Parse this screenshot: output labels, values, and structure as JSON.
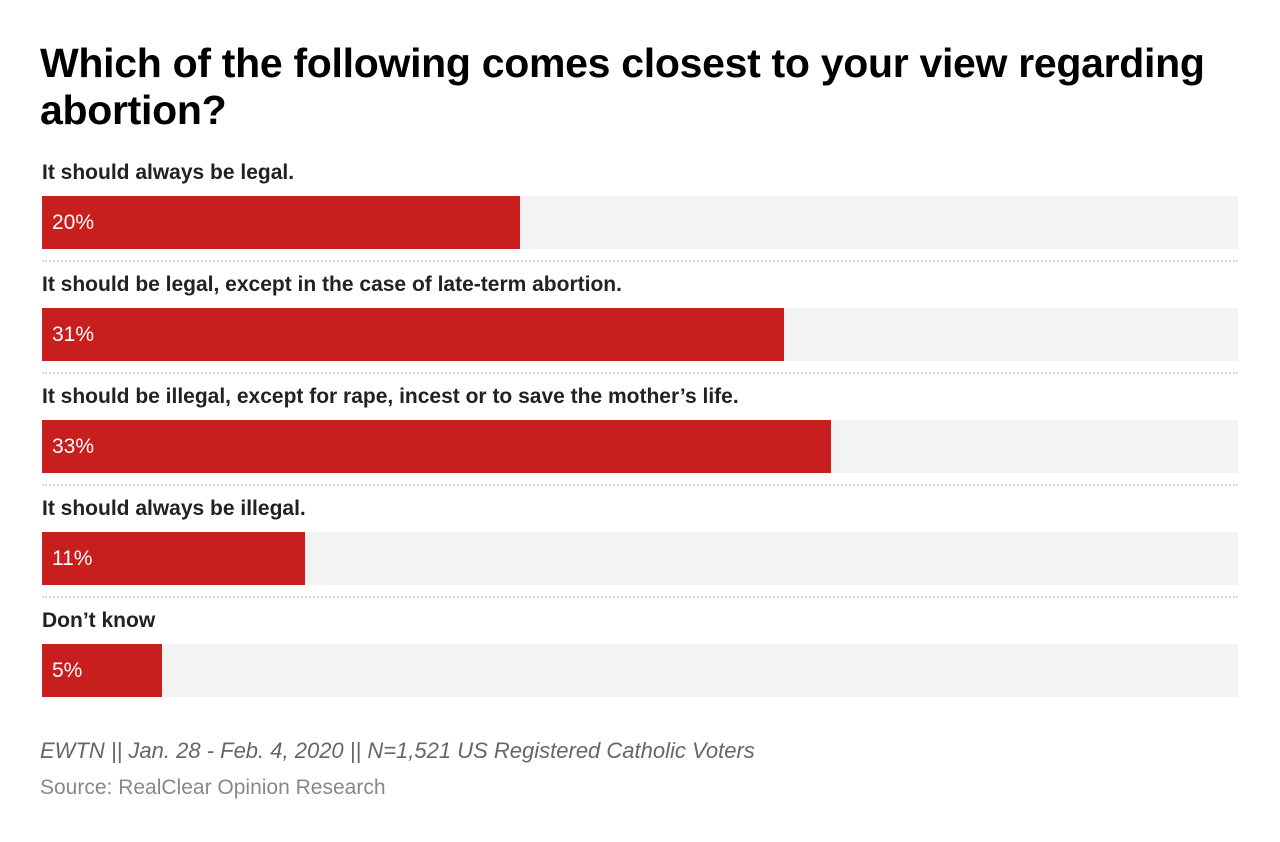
{
  "chart_data": {
    "type": "bar",
    "orientation": "horizontal",
    "title": "Which of the following comes closest to your view regarding abortion?",
    "categories": [
      "It should always be legal.",
      "It should be legal, except in the case of late-term abortion.",
      "It should be illegal, except for rape, incest or to save the mother’s life.",
      "It should always be illegal.",
      "Don’t know"
    ],
    "values": [
      20,
      31,
      33,
      11,
      5
    ],
    "value_labels": [
      "20%",
      "31%",
      "33%",
      "11%",
      "5%"
    ],
    "xlim": [
      0,
      50
    ],
    "grid": false,
    "bar_color": "#c81e1e",
    "track_color": "#f3f3f3"
  },
  "footer": {
    "note": "EWTN || Jan. 28 - Feb. 4, 2020 || N=1,521 US Registered Catholic Voters",
    "source": "Source: RealClear Opinion Research"
  }
}
